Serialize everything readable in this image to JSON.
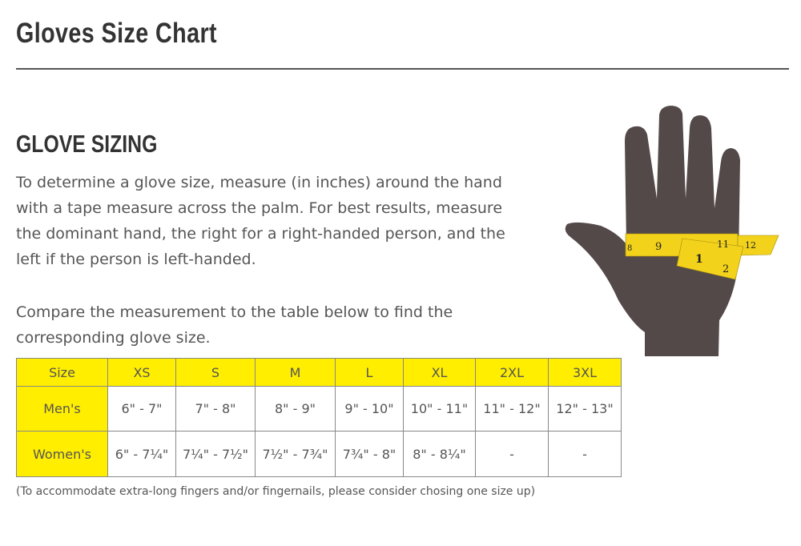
{
  "page_title": "Gloves Size Chart",
  "section_heading": "GLOVE SIZING",
  "paragraph1": "To determine a glove size, measure (in inches) around the hand with a tape measure across the palm. For best results, measure the dominant hand, the right for a right-handed person, and the left if the person is left-handed.",
  "paragraph2": "Compare the measurement to the table below to find the corresponding glove size.",
  "table": {
    "header": [
      "Size",
      "XS",
      "S",
      "M",
      "L",
      "XL",
      "2XL",
      "3XL"
    ],
    "rows": [
      {
        "label": "Men's",
        "values": [
          "6\" - 7\"",
          "7\" - 8\"",
          "8\" - 9\"",
          "9\" - 10\"",
          "10\" - 11\"",
          "11\" - 12\"",
          "12\" - 13\""
        ]
      },
      {
        "label": "Women's",
        "values": [
          "6\" - 7¼\"",
          "7¼\" - 7½\"",
          "7½\" - 7¾\"",
          "7¾\" - 8\"",
          "8\" - 8¼\"",
          "-",
          "-"
        ]
      }
    ]
  },
  "note": "(To accommodate extra-long fingers and/or fingernails, please consider chosing one size up)",
  "illustration": {
    "tape_numbers": [
      "8",
      "9",
      "11",
      "12",
      "1",
      "2"
    ]
  },
  "colors": {
    "highlight": "#ffee00",
    "hand": "#544949",
    "tape": "#f2d21b"
  }
}
